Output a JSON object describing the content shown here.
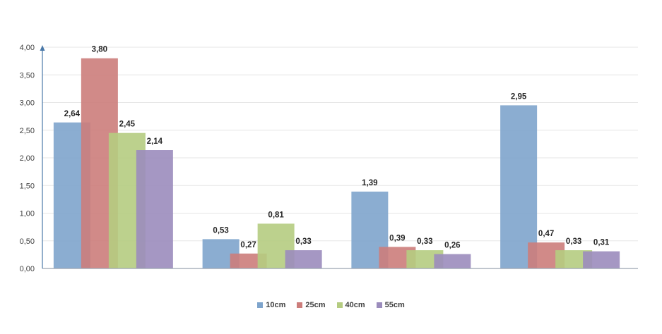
{
  "chart_data": {
    "type": "bar",
    "title": "",
    "xlabel": "",
    "ylabel": "",
    "categories": [
      "",
      "",
      "",
      ""
    ],
    "ylim": [
      0,
      4
    ],
    "yticks": [
      "0,00",
      "0,50",
      "1,00",
      "1,50",
      "2,00",
      "2,50",
      "3,00",
      "3,50",
      "4,00"
    ],
    "grid": true,
    "legend_position": "bottom",
    "series": [
      {
        "name": "10cm",
        "color": "#7ea4cc",
        "values": [
          2.64,
          0.53,
          1.39,
          2.95
        ],
        "labels": [
          "2,64",
          "0,53",
          "1,39",
          "2,95"
        ]
      },
      {
        "name": "25cm",
        "color": "#cc7d7b",
        "values": [
          3.8,
          0.27,
          0.39,
          0.47
        ],
        "labels": [
          "3,80",
          "0,27",
          "0,39",
          "0,47"
        ]
      },
      {
        "name": "40cm",
        "color": "#b5cc81",
        "values": [
          2.45,
          0.81,
          0.33,
          0.33
        ],
        "labels": [
          "2,45",
          "0,81",
          "0,33",
          "0,33"
        ]
      },
      {
        "name": "55cm",
        "color": "#9b8cbc",
        "values": [
          2.14,
          0.33,
          0.26,
          0.31
        ],
        "labels": [
          "2,14",
          "0,33",
          "0,26",
          "0,31"
        ]
      }
    ]
  }
}
